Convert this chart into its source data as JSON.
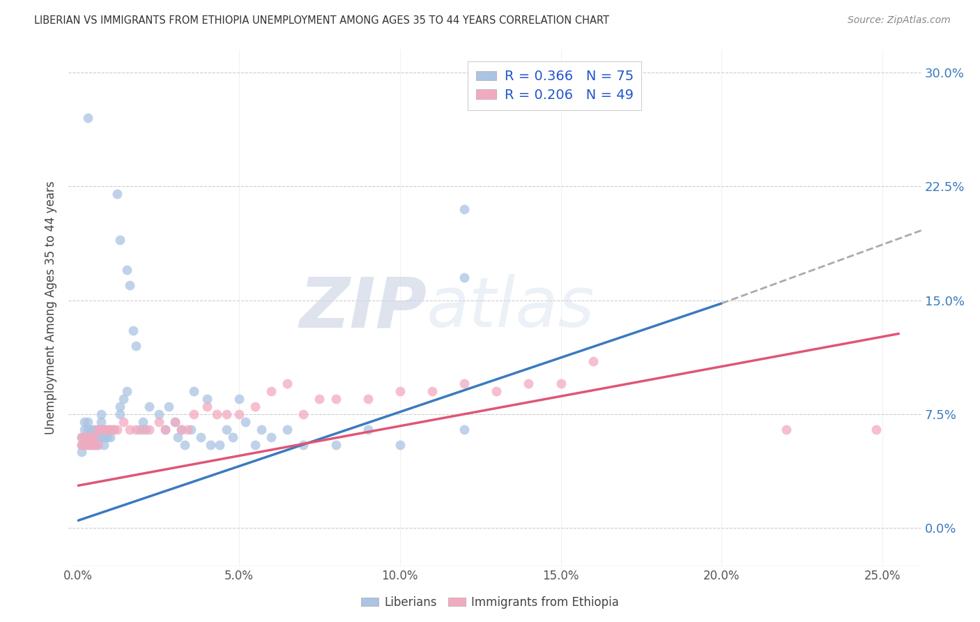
{
  "title": "LIBERIAN VS IMMIGRANTS FROM ETHIOPIA UNEMPLOYMENT AMONG AGES 35 TO 44 YEARS CORRELATION CHART",
  "source": "Source: ZipAtlas.com",
  "ylabel": "Unemployment Among Ages 35 to 44 years",
  "legend_R1": "R = 0.366",
  "legend_N1": "N = 75",
  "legend_R2": "R = 0.206",
  "legend_N2": "N = 49",
  "legend_label1": "Liberians",
  "legend_label2": "Immigrants from Ethiopia",
  "color_blue": "#aac4e2",
  "color_pink": "#f2aabf",
  "line_blue": "#3a7abf",
  "line_pink": "#e05575",
  "line_dash": "#aaaaaa",
  "watermark_zip": "ZIP",
  "watermark_atlas": "atlas",
  "xlim": [
    -0.003,
    0.262
  ],
  "ylim": [
    -0.025,
    0.315
  ],
  "xtick_vals": [
    0.0,
    0.05,
    0.1,
    0.15,
    0.2,
    0.25
  ],
  "ytick_vals": [
    0.0,
    0.075,
    0.15,
    0.225,
    0.3
  ],
  "lib_x": [
    0.001,
    0.001,
    0.001,
    0.002,
    0.002,
    0.002,
    0.002,
    0.003,
    0.003,
    0.003,
    0.003,
    0.004,
    0.004,
    0.004,
    0.005,
    0.005,
    0.005,
    0.006,
    0.006,
    0.006,
    0.007,
    0.007,
    0.007,
    0.008,
    0.008,
    0.008,
    0.009,
    0.009,
    0.01,
    0.01,
    0.011,
    0.012,
    0.013,
    0.013,
    0.014,
    0.015,
    0.015,
    0.016,
    0.017,
    0.018,
    0.019,
    0.02,
    0.021,
    0.022,
    0.025,
    0.027,
    0.028,
    0.03,
    0.031,
    0.032,
    0.033,
    0.035,
    0.036,
    0.038,
    0.04,
    0.041,
    0.044,
    0.046,
    0.048,
    0.05,
    0.052,
    0.055,
    0.057,
    0.06,
    0.065,
    0.07,
    0.08,
    0.09,
    0.1,
    0.12,
    0.013,
    0.007,
    0.003,
    0.12,
    0.12
  ],
  "lib_y": [
    0.05,
    0.055,
    0.06,
    0.055,
    0.06,
    0.065,
    0.07,
    0.055,
    0.06,
    0.065,
    0.07,
    0.055,
    0.06,
    0.065,
    0.055,
    0.06,
    0.065,
    0.055,
    0.06,
    0.065,
    0.06,
    0.065,
    0.07,
    0.055,
    0.06,
    0.065,
    0.06,
    0.065,
    0.06,
    0.065,
    0.065,
    0.22,
    0.19,
    0.075,
    0.085,
    0.09,
    0.17,
    0.16,
    0.13,
    0.12,
    0.065,
    0.07,
    0.065,
    0.08,
    0.075,
    0.065,
    0.08,
    0.07,
    0.06,
    0.065,
    0.055,
    0.065,
    0.09,
    0.06,
    0.085,
    0.055,
    0.055,
    0.065,
    0.06,
    0.085,
    0.07,
    0.055,
    0.065,
    0.06,
    0.065,
    0.055,
    0.055,
    0.065,
    0.055,
    0.065,
    0.08,
    0.075,
    0.27,
    0.21,
    0.165
  ],
  "eth_x": [
    0.001,
    0.001,
    0.002,
    0.002,
    0.003,
    0.003,
    0.004,
    0.004,
    0.005,
    0.005,
    0.006,
    0.006,
    0.007,
    0.008,
    0.009,
    0.01,
    0.011,
    0.012,
    0.014,
    0.016,
    0.018,
    0.02,
    0.022,
    0.025,
    0.027,
    0.03,
    0.032,
    0.034,
    0.036,
    0.04,
    0.043,
    0.046,
    0.05,
    0.055,
    0.06,
    0.065,
    0.07,
    0.075,
    0.08,
    0.09,
    0.1,
    0.11,
    0.12,
    0.13,
    0.14,
    0.15,
    0.16,
    0.22,
    0.248
  ],
  "eth_y": [
    0.055,
    0.06,
    0.055,
    0.06,
    0.055,
    0.06,
    0.055,
    0.06,
    0.055,
    0.06,
    0.055,
    0.065,
    0.065,
    0.065,
    0.065,
    0.065,
    0.065,
    0.065,
    0.07,
    0.065,
    0.065,
    0.065,
    0.065,
    0.07,
    0.065,
    0.07,
    0.065,
    0.065,
    0.075,
    0.08,
    0.075,
    0.075,
    0.075,
    0.08,
    0.09,
    0.095,
    0.075,
    0.085,
    0.085,
    0.085,
    0.09,
    0.09,
    0.095,
    0.09,
    0.095,
    0.095,
    0.11,
    0.065,
    0.065
  ],
  "lib_line_x": [
    0.0,
    0.2
  ],
  "lib_line_y": [
    0.005,
    0.148
  ],
  "eth_line_x": [
    0.0,
    0.255
  ],
  "eth_line_y": [
    0.028,
    0.128
  ],
  "dash_line_x": [
    0.2,
    0.262
  ],
  "dash_line_y": [
    0.148,
    0.196
  ]
}
